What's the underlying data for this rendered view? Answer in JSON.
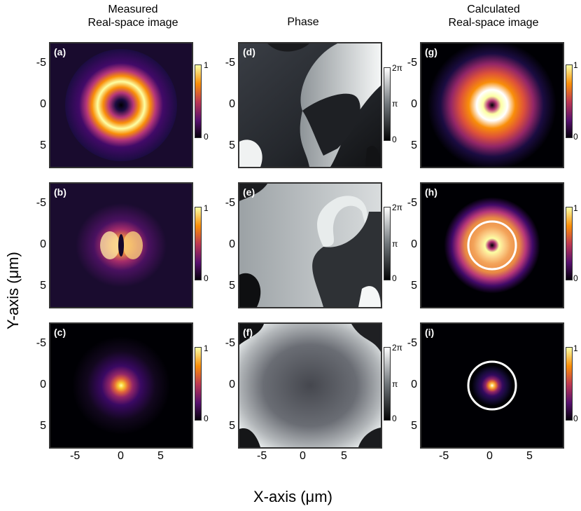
{
  "titles": {
    "col1": [
      "Measured",
      "Real-space image"
    ],
    "col2": "Phase",
    "col3": [
      "Calculated",
      "Real-space image"
    ]
  },
  "axes": {
    "xlabel": "X-axis (μm)",
    "ylabel": "Y-axis (μm)",
    "xticks": [
      "-5",
      "0",
      "5"
    ],
    "yticks": [
      "-5",
      "0",
      "5"
    ]
  },
  "panels": [
    {
      "label": "(a)",
      "kind": "measured-ring"
    },
    {
      "label": "(d)",
      "kind": "phase-vortex"
    },
    {
      "label": "(g)",
      "kind": "calculated-ring"
    },
    {
      "label": "(b)",
      "kind": "measured-split"
    },
    {
      "label": "(e)",
      "kind": "phase-spiral"
    },
    {
      "label": "(h)",
      "kind": "calculated-ring-circle"
    },
    {
      "label": "(i)",
      "kind": "calculated-spot-circle"
    },
    {
      "label": "(c)",
      "kind": "measured-spot"
    },
    {
      "label": "(f)",
      "kind": "phase-flat"
    }
  ],
  "colorbars": {
    "intensity_ticks": [
      "1",
      "0"
    ],
    "phase_ticks": [
      "2π",
      "π",
      "0"
    ]
  },
  "colors": {
    "inferno_low": "#000004",
    "inferno_mid": "#b73779",
    "inferno_high": "#fcffa4",
    "phase_low": "#000000",
    "phase_high": "#ffffff"
  }
}
